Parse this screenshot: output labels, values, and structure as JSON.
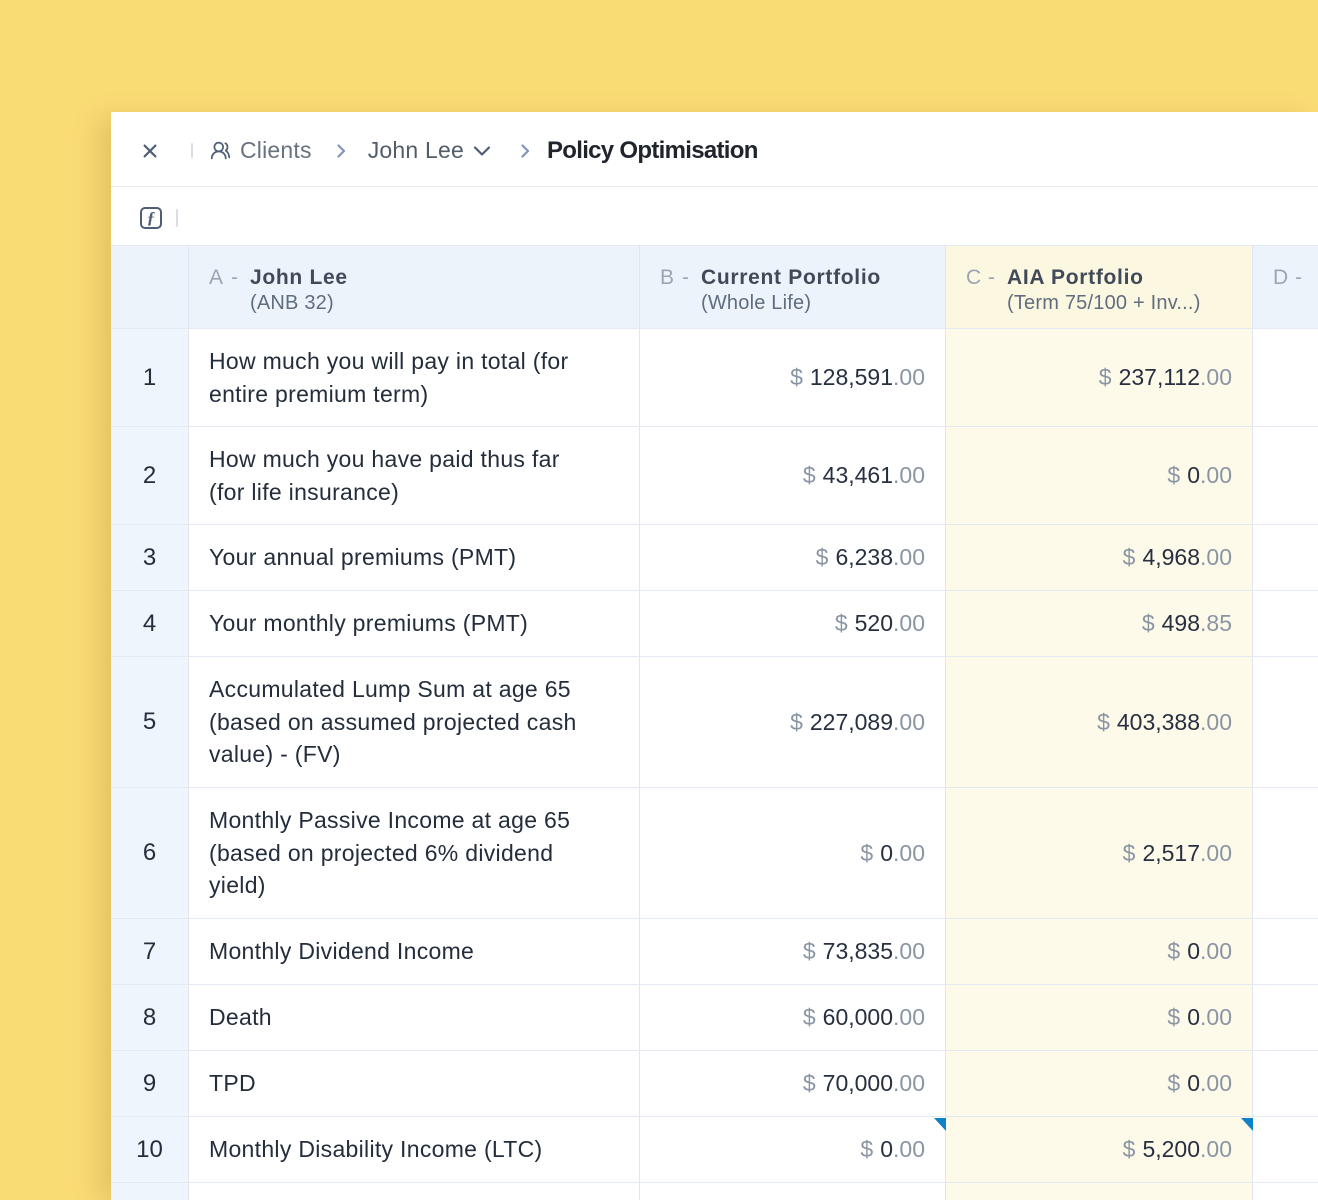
{
  "colors": {
    "background": "#fadc75",
    "column_c_highlight": "#fdfaea",
    "header_blue": "#edf3fa",
    "marker_blue": "#0f82c7"
  },
  "topbar": {
    "close_icon": "close-icon",
    "breadcrumb": {
      "root_icon": "users-icon",
      "root": "Clients",
      "client": "John Lee",
      "page": "Policy Optimisation"
    }
  },
  "formula_bar": {
    "icon": "function-icon"
  },
  "sheet": {
    "columns": [
      {
        "key": "a",
        "letter": "A",
        "dash": "-",
        "title": "John Lee",
        "subtitle": "(ANB 32)"
      },
      {
        "key": "b",
        "letter": "B",
        "dash": "-",
        "title": "Current Portfolio",
        "subtitle": "(Whole Life)"
      },
      {
        "key": "c",
        "letter": "C",
        "dash": "-",
        "title": "AIA Portfolio",
        "subtitle": "(Term 75/100 + Inv...)",
        "highlighted": true
      },
      {
        "key": "d",
        "letter": "D",
        "dash": "-",
        "title": "",
        "subtitle": ""
      }
    ],
    "rows": [
      {
        "num": "1",
        "label": "How much you will pay in total (for\nentire premium term)",
        "b": "$ 128,591.00",
        "c": "$ 237,112.00"
      },
      {
        "num": "2",
        "label": "How much you have paid thus far\n(for life insurance)",
        "b": "$ 43,461.00",
        "c": "$ 0.00"
      },
      {
        "num": "3",
        "label": "Your annual premiums (PMT)",
        "b": "$ 6,238.00",
        "c": "$ 4,968.00"
      },
      {
        "num": "4",
        "label": "Your monthly premiums (PMT)",
        "b": "$ 520.00",
        "c": "$ 498.85"
      },
      {
        "num": "5",
        "label": "Accumulated Lump Sum at age 65\n(based on assumed projected cash\nvalue) - (FV)",
        "b": "$ 227,089.00",
        "c": "$ 403,388.00"
      },
      {
        "num": "6",
        "label": "Monthly Passive Income at age 65\n(based on projected 6% dividend\nyield)",
        "b": "$ 0.00",
        "c": "$ 2,517.00"
      },
      {
        "num": "7",
        "label": "Monthly Dividend Income",
        "b": "$ 73,835.00",
        "c": "$ 0.00"
      },
      {
        "num": "8",
        "label": "Death",
        "b": "$ 60,000.00",
        "c": "$ 0.00"
      },
      {
        "num": "9",
        "label": "TPD",
        "b": "$ 70,000.00",
        "c": "$ 0.00"
      },
      {
        "num": "10",
        "label": "Monthly Disability Income (LTC)",
        "b": "$ 0.00",
        "c": "$ 5,200.00",
        "markers": [
          "b",
          "c"
        ]
      }
    ]
  }
}
